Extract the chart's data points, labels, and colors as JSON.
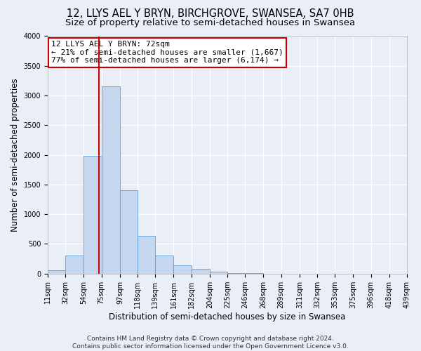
{
  "title": "12, LLYS AEL Y BRYN, BIRCHGROVE, SWANSEA, SA7 0HB",
  "subtitle": "Size of property relative to semi-detached houses in Swansea",
  "xlabel": "Distribution of semi-detached houses by size in Swansea",
  "ylabel": "Number of semi-detached properties",
  "bin_labels": [
    "11sqm",
    "32sqm",
    "54sqm",
    "75sqm",
    "97sqm",
    "118sqm",
    "139sqm",
    "161sqm",
    "182sqm",
    "204sqm",
    "225sqm",
    "246sqm",
    "268sqm",
    "289sqm",
    "311sqm",
    "332sqm",
    "353sqm",
    "375sqm",
    "396sqm",
    "418sqm",
    "439sqm"
  ],
  "bin_edges": [
    11,
    32,
    54,
    75,
    97,
    118,
    139,
    161,
    182,
    204,
    225,
    246,
    268,
    289,
    311,
    332,
    353,
    375,
    396,
    418,
    439
  ],
  "bar_heights": [
    50,
    310,
    1980,
    3150,
    1400,
    640,
    300,
    140,
    75,
    30,
    10,
    5,
    2,
    1,
    1,
    0,
    0,
    0,
    0,
    0
  ],
  "bar_color": "#c5d8f0",
  "bar_edgecolor": "#5a9fd4",
  "property_size": 72,
  "vline_color": "#cc0000",
  "ylim": [
    0,
    4000
  ],
  "yticks": [
    0,
    500,
    1000,
    1500,
    2000,
    2500,
    3000,
    3500,
    4000
  ],
  "annotation_title": "12 LLYS AEL Y BRYN: 72sqm",
  "annotation_line1": "← 21% of semi-detached houses are smaller (1,667)",
  "annotation_line2": "77% of semi-detached houses are larger (6,174) →",
  "annotation_box_color": "#ffffff",
  "annotation_border_color": "#cc0000",
  "footer_line1": "Contains HM Land Registry data © Crown copyright and database right 2024.",
  "footer_line2": "Contains public sector information licensed under the Open Government Licence v3.0.",
  "background_color": "#eaeff7",
  "plot_background": "#eaeff7",
  "title_fontsize": 10.5,
  "subtitle_fontsize": 9.5,
  "axis_label_fontsize": 8.5,
  "tick_fontsize": 7,
  "annotation_fontsize": 8,
  "footer_fontsize": 6.5
}
